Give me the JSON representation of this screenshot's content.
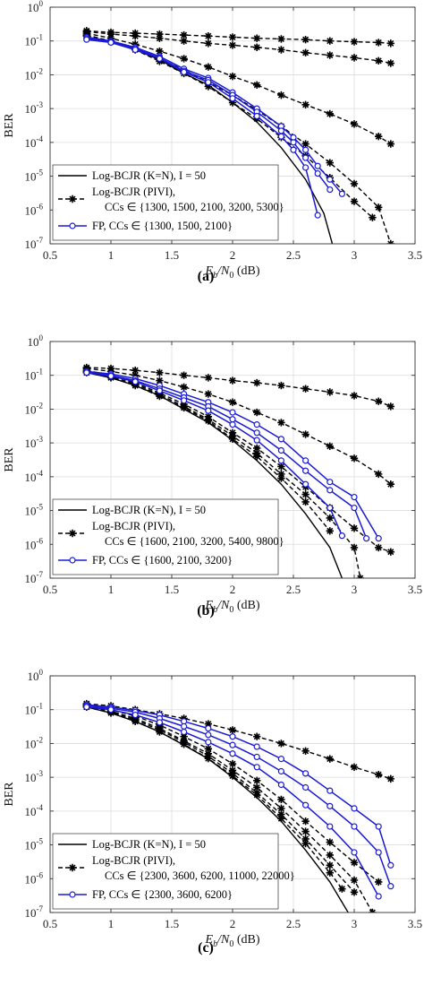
{
  "chart_data": [
    {
      "type": "line",
      "caption": "(a)",
      "xlabel_main": "E",
      "xlabel_sub": "b",
      "xlabel_div": "/N",
      "xlabel_sub0": "0",
      "xlabel_unit": " (dB)",
      "ylabel": "BER",
      "xlim": [
        0.5,
        3.5
      ],
      "ylim": [
        1e-07,
        1
      ],
      "yscale": "log",
      "grid": true,
      "legend_position": "bottom-left",
      "xticks": [
        "0.5",
        "1",
        "1.5",
        "2",
        "2.5",
        "3",
        "3.5"
      ],
      "yticks_base": "10",
      "yticks_exp": [
        "-7",
        "-6",
        "-5",
        "-4",
        "-3",
        "-2",
        "-1",
        "0"
      ],
      "legend": [
        {
          "line1": "Log-BCJR (K=N), I = 50",
          "line2": ""
        },
        {
          "line1": "Log-BCJR (PIVI),",
          "line2": "CCs ∈ {1300, 1500, 2100, 3200, 5300}"
        },
        {
          "line1": "FP, CCs ∈ {1300, 1500, 2100}",
          "line2": ""
        }
      ],
      "series": [
        {
          "group": "ref",
          "style": "solid-black",
          "x": [
            0.8,
            1.0,
            1.2,
            1.4,
            1.6,
            1.8,
            2.0,
            2.2,
            2.4,
            2.6,
            2.75,
            2.82
          ],
          "y": [
            0.12,
            0.09,
            0.055,
            0.028,
            0.011,
            0.005,
            0.0015,
            0.0004,
            7e-05,
            8e-06,
            8e-07,
            1e-07
          ]
        },
        {
          "group": "pivi",
          "style": "dash-star",
          "x": [
            0.8,
            1.0,
            1.2,
            1.4,
            1.6,
            1.8,
            2.0,
            2.2,
            2.4,
            2.6,
            2.8,
            3.0,
            3.2,
            3.3
          ],
          "y": [
            0.2,
            0.18,
            0.17,
            0.16,
            0.15,
            0.14,
            0.13,
            0.12,
            0.115,
            0.11,
            0.1,
            0.095,
            0.09,
            0.085
          ]
        },
        {
          "group": "pivi",
          "style": "dash-star",
          "x": [
            0.8,
            1.0,
            1.2,
            1.4,
            1.6,
            1.8,
            2.0,
            2.2,
            2.4,
            2.6,
            2.8,
            3.0,
            3.2,
            3.3
          ],
          "y": [
            0.19,
            0.16,
            0.14,
            0.12,
            0.1,
            0.085,
            0.075,
            0.065,
            0.055,
            0.045,
            0.038,
            0.032,
            0.026,
            0.022
          ]
        },
        {
          "group": "pivi",
          "style": "dash-star",
          "x": [
            0.8,
            1.0,
            1.2,
            1.4,
            1.6,
            1.8,
            2.0,
            2.2,
            2.4,
            2.6,
            2.8,
            3.0,
            3.2,
            3.3
          ],
          "y": [
            0.17,
            0.12,
            0.08,
            0.05,
            0.03,
            0.017,
            0.009,
            0.005,
            0.0025,
            0.0013,
            0.0007,
            0.00035,
            0.00015,
            9e-05
          ]
        },
        {
          "group": "pivi",
          "style": "dash-star",
          "x": [
            0.8,
            1.0,
            1.2,
            1.4,
            1.6,
            1.8,
            2.0,
            2.2,
            2.4,
            2.6,
            2.8,
            3.0,
            3.2,
            3.3
          ],
          "y": [
            0.15,
            0.1,
            0.06,
            0.03,
            0.014,
            0.006,
            0.0025,
            0.0009,
            0.0003,
            9e-05,
            2.5e-05,
            6e-06,
            1.2e-06,
            1e-07
          ]
        },
        {
          "group": "pivi",
          "style": "dash-star",
          "x": [
            0.8,
            1.0,
            1.2,
            1.4,
            1.6,
            1.8,
            2.0,
            2.2,
            2.4,
            2.6,
            2.8,
            3.0,
            3.15
          ],
          "y": [
            0.14,
            0.095,
            0.055,
            0.025,
            0.011,
            0.0045,
            0.0015,
            0.0005,
            0.00014,
            4e-05,
            9e-06,
            1.8e-06,
            6e-07
          ]
        },
        {
          "group": "fp",
          "style": "blue-circle",
          "x": [
            0.8,
            1.0,
            1.2,
            1.4,
            1.6,
            1.8,
            2.0,
            2.2,
            2.4,
            2.5,
            2.6,
            2.7,
            2.8,
            2.9
          ],
          "y": [
            0.13,
            0.1,
            0.065,
            0.035,
            0.015,
            0.008,
            0.003,
            0.001,
            0.0003,
            0.00014,
            6e-05,
            2e-05,
            8e-06,
            3e-06
          ]
        },
        {
          "group": "fp",
          "style": "blue-circle",
          "x": [
            0.8,
            1.0,
            1.2,
            1.4,
            1.6,
            1.8,
            2.0,
            2.2,
            2.4,
            2.5,
            2.6,
            2.7,
            2.8
          ],
          "y": [
            0.12,
            0.095,
            0.06,
            0.032,
            0.013,
            0.007,
            0.0025,
            0.0008,
            0.00022,
            0.0001,
            3.5e-05,
            1.2e-05,
            4e-06
          ]
        },
        {
          "group": "fp",
          "style": "blue-circle",
          "x": [
            0.8,
            1.0,
            1.2,
            1.4,
            1.6,
            1.8,
            2.0,
            2.2,
            2.4,
            2.5,
            2.6,
            2.7
          ],
          "y": [
            0.11,
            0.09,
            0.055,
            0.03,
            0.012,
            0.006,
            0.002,
            0.0006,
            0.00015,
            6e-05,
            1.8e-05,
            7e-07
          ]
        }
      ]
    },
    {
      "type": "line",
      "caption": "(b)",
      "xlabel_main": "E",
      "xlabel_sub": "b",
      "xlabel_div": "/N",
      "xlabel_sub0": "0",
      "xlabel_unit": " (dB)",
      "ylabel": "BER",
      "xlim": [
        0.5,
        3.5
      ],
      "ylim": [
        1e-07,
        1
      ],
      "yscale": "log",
      "grid": true,
      "legend_position": "bottom-left",
      "xticks": [
        "0.5",
        "1",
        "1.5",
        "2",
        "2.5",
        "3",
        "3.5"
      ],
      "yticks_base": "10",
      "yticks_exp": [
        "-7",
        "-6",
        "-5",
        "-4",
        "-3",
        "-2",
        "-1",
        "0"
      ],
      "legend": [
        {
          "line1": "Log-BCJR (K=N), I = 50",
          "line2": ""
        },
        {
          "line1": "Log-BCJR (PIVI),",
          "line2": "CCs ∈ {1600, 2100, 3200, 5400, 9800}"
        },
        {
          "line1": "FP, CCs ∈ {1600, 2100, 3200}",
          "line2": ""
        }
      ],
      "series": [
        {
          "group": "ref",
          "style": "solid-black",
          "x": [
            0.8,
            1.0,
            1.2,
            1.4,
            1.6,
            1.8,
            2.0,
            2.2,
            2.4,
            2.6,
            2.8,
            2.9
          ],
          "y": [
            0.12,
            0.085,
            0.05,
            0.025,
            0.01,
            0.004,
            0.0012,
            0.0003,
            6e-05,
            8e-06,
            8e-07,
            1e-07
          ]
        },
        {
          "group": "pivi",
          "style": "dash-star",
          "x": [
            0.8,
            1.0,
            1.2,
            1.4,
            1.6,
            1.8,
            2.0,
            2.2,
            2.4,
            2.6,
            2.8,
            3.0,
            3.2,
            3.3
          ],
          "y": [
            0.17,
            0.16,
            0.14,
            0.12,
            0.1,
            0.085,
            0.07,
            0.06,
            0.05,
            0.04,
            0.032,
            0.025,
            0.017,
            0.012
          ]
        },
        {
          "group": "pivi",
          "style": "dash-star",
          "x": [
            0.8,
            1.0,
            1.2,
            1.4,
            1.6,
            1.8,
            2.0,
            2.2,
            2.4,
            2.6,
            2.8,
            3.0,
            3.2,
            3.3
          ],
          "y": [
            0.16,
            0.13,
            0.1,
            0.07,
            0.045,
            0.028,
            0.016,
            0.008,
            0.004,
            0.0018,
            0.0008,
            0.00035,
            0.00012,
            6e-05
          ]
        },
        {
          "group": "pivi",
          "style": "dash-star",
          "x": [
            0.8,
            1.0,
            1.2,
            1.4,
            1.6,
            1.8,
            2.0,
            2.2,
            2.4,
            2.6,
            2.8,
            3.0,
            3.2,
            3.3
          ],
          "y": [
            0.14,
            0.1,
            0.06,
            0.03,
            0.014,
            0.006,
            0.002,
            0.0007,
            0.0002,
            5e-05,
            1.2e-05,
            3e-06,
            8e-07,
            6e-07
          ]
        },
        {
          "group": "pivi",
          "style": "dash-star",
          "x": [
            0.8,
            1.0,
            1.2,
            1.4,
            1.6,
            1.8,
            2.0,
            2.2,
            2.4,
            2.6,
            2.8,
            3.0,
            3.05
          ],
          "y": [
            0.13,
            0.09,
            0.055,
            0.027,
            0.012,
            0.005,
            0.0016,
            0.0005,
            0.00012,
            3e-05,
            6e-06,
            8e-07,
            1e-07
          ]
        },
        {
          "group": "pivi",
          "style": "dash-star",
          "x": [
            0.8,
            1.0,
            1.2,
            1.4,
            1.6,
            1.8,
            2.0,
            2.2,
            2.4,
            2.6,
            2.8
          ],
          "y": [
            0.12,
            0.085,
            0.05,
            0.024,
            0.011,
            0.0045,
            0.0013,
            0.0004,
            9e-05,
            1.8e-05,
            2.5e-06
          ]
        },
        {
          "group": "fp",
          "style": "blue-circle",
          "x": [
            0.8,
            1.0,
            1.2,
            1.4,
            1.6,
            1.8,
            2.0,
            2.2,
            2.4,
            2.6,
            2.8,
            3.0,
            3.2
          ],
          "y": [
            0.13,
            0.11,
            0.08,
            0.05,
            0.028,
            0.016,
            0.008,
            0.0035,
            0.0013,
            0.0003,
            7e-05,
            2.5e-05,
            1.5e-06
          ]
        },
        {
          "group": "fp",
          "style": "blue-circle",
          "x": [
            0.8,
            1.0,
            1.2,
            1.4,
            1.6,
            1.8,
            2.0,
            2.2,
            2.4,
            2.6,
            2.8,
            3.0,
            3.1
          ],
          "y": [
            0.13,
            0.1,
            0.07,
            0.04,
            0.022,
            0.012,
            0.005,
            0.002,
            0.0006,
            0.00015,
            4e-05,
            1.2e-05,
            1.5e-06
          ]
        },
        {
          "group": "fp",
          "style": "blue-circle",
          "x": [
            0.8,
            1.0,
            1.2,
            1.4,
            1.6,
            1.8,
            2.0,
            2.2,
            2.4,
            2.6,
            2.8,
            2.9
          ],
          "y": [
            0.12,
            0.095,
            0.065,
            0.035,
            0.018,
            0.009,
            0.0035,
            0.0012,
            0.0003,
            6e-05,
            1.2e-05,
            1.8e-06
          ]
        }
      ]
    },
    {
      "type": "line",
      "caption": "(c)",
      "xlabel_main": "E",
      "xlabel_sub": "b",
      "xlabel_div": "/N",
      "xlabel_sub0": "0",
      "xlabel_unit": " (dB)",
      "ylabel": "BER",
      "xlim": [
        0.5,
        3.5
      ],
      "ylim": [
        1e-07,
        1
      ],
      "yscale": "log",
      "grid": true,
      "legend_position": "bottom-left",
      "xticks": [
        "0.5",
        "1",
        "1.5",
        "2",
        "2.5",
        "3",
        "3.5"
      ],
      "yticks_base": "10",
      "yticks_exp": [
        "-7",
        "-6",
        "-5",
        "-4",
        "-3",
        "-2",
        "-1",
        "0"
      ],
      "legend": [
        {
          "line1": "Log-BCJR (K=N), I = 50",
          "line2": ""
        },
        {
          "line1": "Log-BCJR (PIVI),",
          "line2": "CCs ∈ {2300, 3600, 6200, 11000, 22000}"
        },
        {
          "line1": "FP, CCs ∈ {2300, 3600, 6200}",
          "line2": ""
        }
      ],
      "series": [
        {
          "group": "ref",
          "style": "solid-black",
          "x": [
            0.8,
            1.0,
            1.2,
            1.4,
            1.6,
            1.8,
            2.0,
            2.2,
            2.4,
            2.6,
            2.8,
            2.95
          ],
          "y": [
            0.12,
            0.08,
            0.045,
            0.022,
            0.009,
            0.0035,
            0.001,
            0.00025,
            5e-05,
            7e-06,
            8e-07,
            1e-07
          ]
        },
        {
          "group": "pivi",
          "style": "dash-star",
          "x": [
            0.8,
            1.0,
            1.2,
            1.4,
            1.6,
            1.8,
            2.0,
            2.2,
            2.4,
            2.6,
            2.8,
            3.0,
            3.2,
            3.3
          ],
          "y": [
            0.15,
            0.13,
            0.1,
            0.075,
            0.055,
            0.038,
            0.025,
            0.016,
            0.01,
            0.006,
            0.0035,
            0.002,
            0.0012,
            0.0009
          ]
        },
        {
          "group": "pivi",
          "style": "dash-star",
          "x": [
            0.8,
            1.0,
            1.2,
            1.4,
            1.6,
            1.8,
            2.0,
            2.2,
            2.4,
            2.6,
            2.8,
            3.0,
            3.2
          ],
          "y": [
            0.14,
            0.1,
            0.065,
            0.035,
            0.016,
            0.007,
            0.0025,
            0.0008,
            0.00022,
            5e-05,
            1.2e-05,
            3e-06,
            8e-07
          ]
        },
        {
          "group": "pivi",
          "style": "dash-star",
          "x": [
            0.8,
            1.0,
            1.2,
            1.4,
            1.6,
            1.8,
            2.0,
            2.2,
            2.4,
            2.6,
            2.8,
            3.0,
            3.15
          ],
          "y": [
            0.13,
            0.09,
            0.055,
            0.028,
            0.012,
            0.005,
            0.0016,
            0.0005,
            0.00012,
            2.5e-05,
            5e-06,
            9e-07,
            1e-07
          ]
        },
        {
          "group": "pivi",
          "style": "dash-star",
          "x": [
            0.8,
            1.0,
            1.2,
            1.4,
            1.6,
            1.8,
            2.0,
            2.2,
            2.4,
            2.6,
            2.8,
            3.0
          ],
          "y": [
            0.12,
            0.085,
            0.05,
            0.025,
            0.011,
            0.0042,
            0.0013,
            0.00035,
            8e-05,
            1.5e-05,
            2.5e-06,
            4e-07
          ]
        },
        {
          "group": "pivi",
          "style": "dash-star",
          "x": [
            0.8,
            1.0,
            1.2,
            1.4,
            1.6,
            1.8,
            2.0,
            2.2,
            2.4,
            2.6,
            2.8,
            2.9
          ],
          "y": [
            0.12,
            0.08,
            0.045,
            0.022,
            0.0095,
            0.0036,
            0.0011,
            0.0003,
            6e-05,
            1.1e-05,
            1.5e-06,
            5e-07
          ]
        },
        {
          "group": "fp",
          "style": "blue-circle",
          "x": [
            0.8,
            1.0,
            1.2,
            1.4,
            1.6,
            1.8,
            2.0,
            2.2,
            2.4,
            2.6,
            2.8,
            3.0,
            3.2,
            3.3
          ],
          "y": [
            0.14,
            0.12,
            0.095,
            0.07,
            0.045,
            0.028,
            0.016,
            0.008,
            0.0035,
            0.0013,
            0.0004,
            0.00012,
            3.5e-05,
            2.5e-06
          ]
        },
        {
          "group": "fp",
          "style": "blue-circle",
          "x": [
            0.8,
            1.0,
            1.2,
            1.4,
            1.6,
            1.8,
            2.0,
            2.2,
            2.4,
            2.6,
            2.8,
            3.0,
            3.2,
            3.3
          ],
          "y": [
            0.13,
            0.11,
            0.085,
            0.055,
            0.032,
            0.018,
            0.009,
            0.004,
            0.0015,
            0.0005,
            0.00014,
            3.5e-05,
            6e-06,
            6e-07
          ]
        },
        {
          "group": "fp",
          "style": "blue-circle",
          "x": [
            0.8,
            1.0,
            1.2,
            1.4,
            1.6,
            1.8,
            2.0,
            2.2,
            2.4,
            2.6,
            2.8,
            3.0,
            3.2
          ],
          "y": [
            0.12,
            0.1,
            0.07,
            0.042,
            0.022,
            0.011,
            0.005,
            0.002,
            0.0006,
            0.00015,
            3.5e-05,
            6e-06,
            3e-07
          ]
        }
      ]
    }
  ]
}
